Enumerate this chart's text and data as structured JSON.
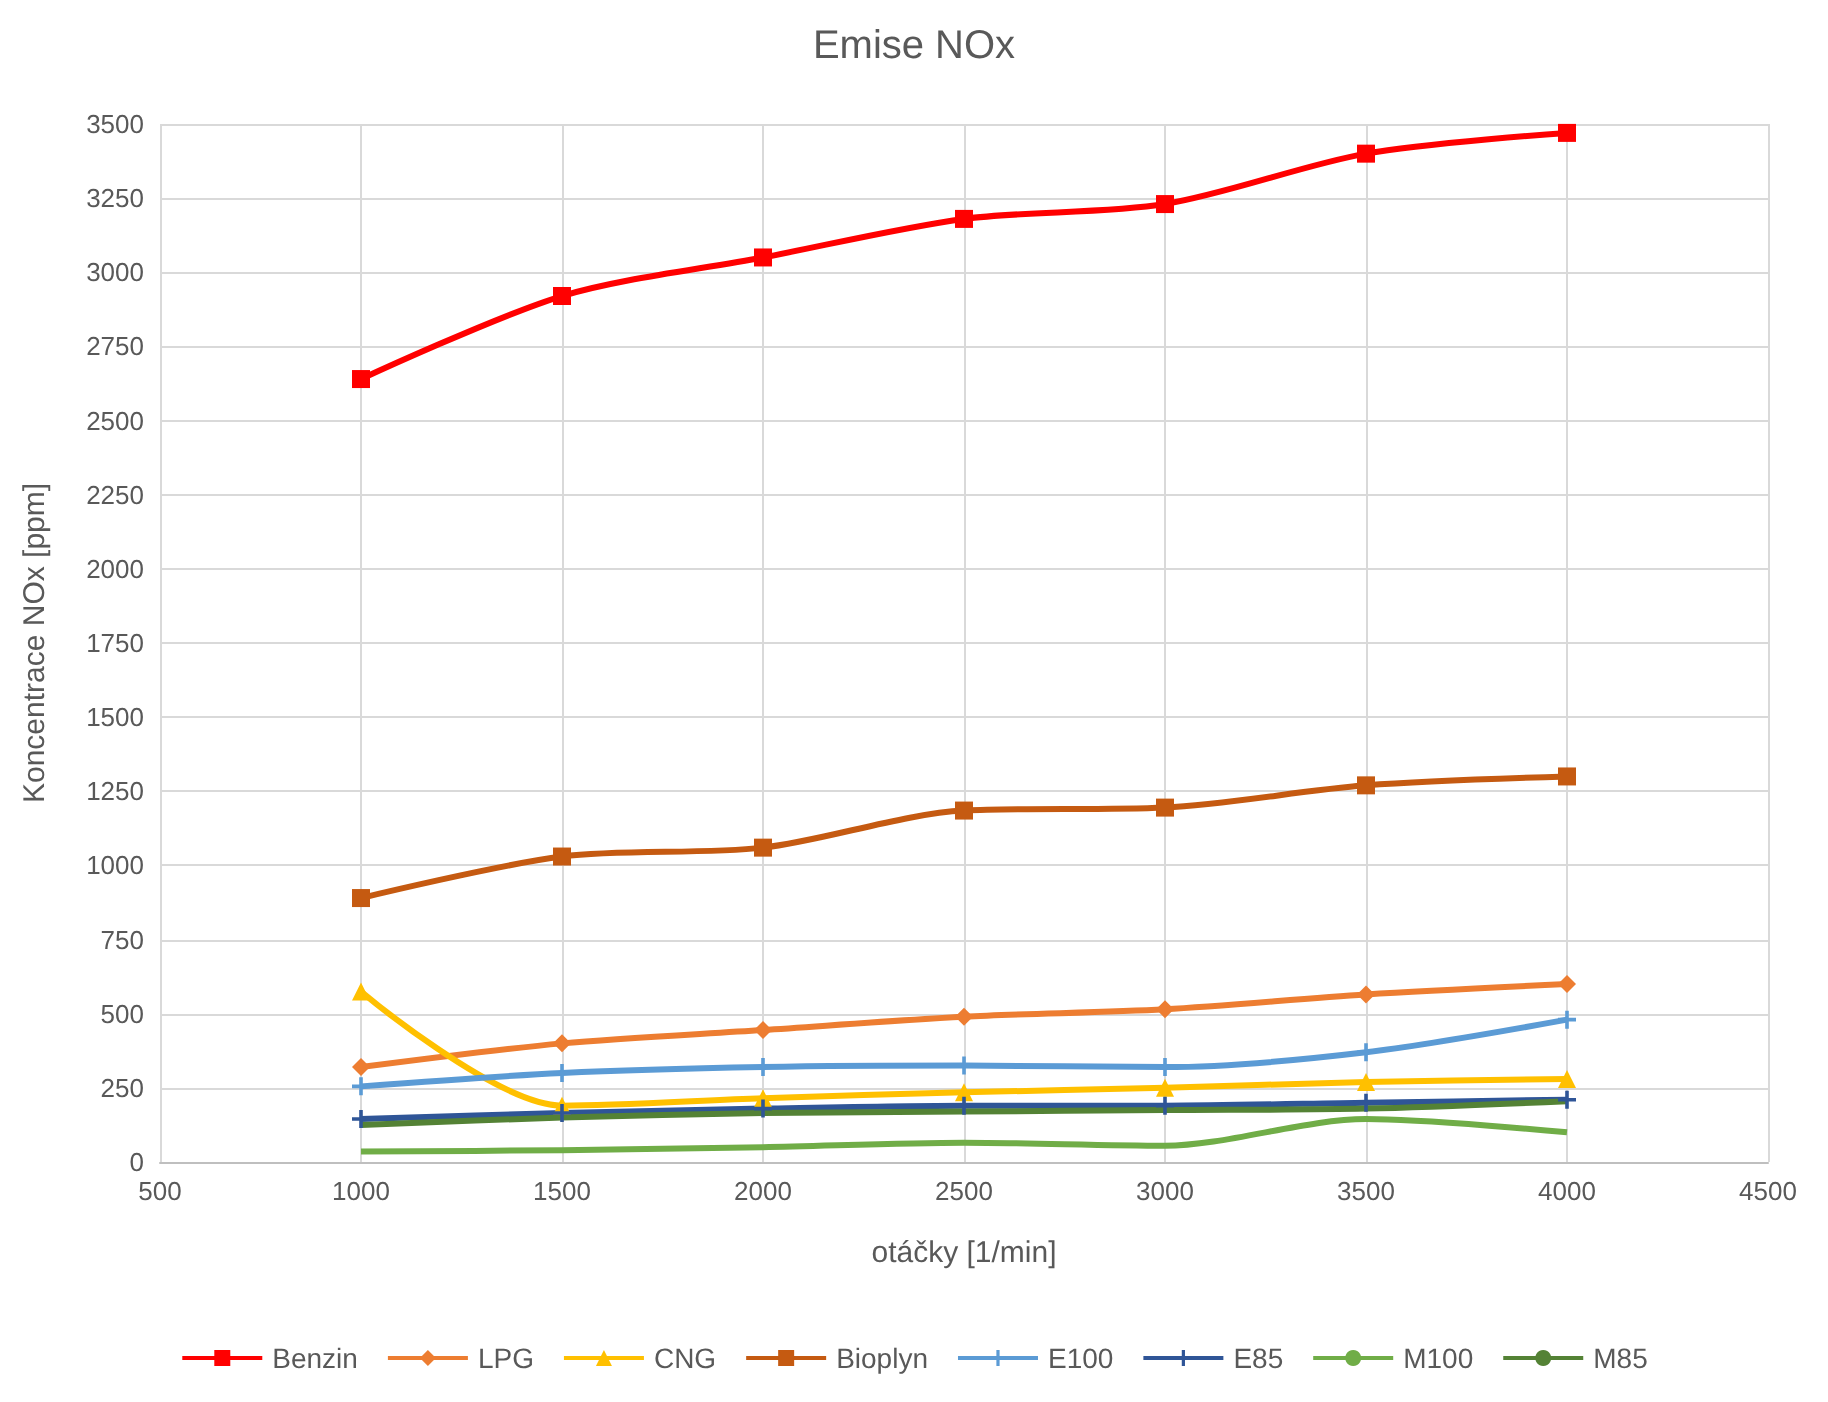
{
  "chart_data": {
    "type": "line",
    "title": "Emise NOx",
    "xlabel": "otáčky [1/min]",
    "ylabel": "Koncentrace NOx [ppm]",
    "x": [
      1000,
      1500,
      2000,
      2500,
      3000,
      3500,
      4000
    ],
    "xlim": [
      500,
      4500
    ],
    "xticks": [
      500,
      1000,
      1500,
      2000,
      2500,
      3000,
      3500,
      4000,
      4500
    ],
    "ylim": [
      0,
      3500
    ],
    "yticks": [
      0,
      250,
      500,
      750,
      1000,
      1250,
      1500,
      1750,
      2000,
      2250,
      2500,
      2750,
      3000,
      3250,
      3500
    ],
    "grid": true,
    "legend": "bottom",
    "series": [
      {
        "name": "Benzin",
        "color": "#ff0000",
        "marker": "square",
        "values": [
          2640,
          2920,
          3050,
          3180,
          3230,
          3400,
          3470
        ]
      },
      {
        "name": "LPG",
        "color": "#ed7d31",
        "marker": "diamond",
        "values": [
          320,
          400,
          445,
          490,
          515,
          565,
          600
        ]
      },
      {
        "name": "CNG",
        "color": "#ffc000",
        "marker": "triangle",
        "values": [
          575,
          190,
          215,
          235,
          250,
          270,
          280
        ]
      },
      {
        "name": "Bioplyn",
        "color": "#c55a11",
        "marker": "square",
        "values": [
          890,
          1030,
          1060,
          1185,
          1195,
          1270,
          1300
        ]
      },
      {
        "name": "E100",
        "color": "#5b9bd5",
        "marker": "cross",
        "values": [
          255,
          300,
          320,
          325,
          320,
          370,
          480
        ]
      },
      {
        "name": "E85",
        "color": "#2f5597",
        "marker": "cross",
        "values": [
          145,
          165,
          180,
          190,
          190,
          200,
          210
        ]
      },
      {
        "name": "M100",
        "color": "#70ad47",
        "marker": "none",
        "values": [
          35,
          40,
          50,
          65,
          55,
          145,
          100
        ]
      },
      {
        "name": "M85",
        "color": "#548235",
        "marker": "none",
        "values": [
          125,
          150,
          165,
          170,
          175,
          180,
          205
        ]
      }
    ]
  }
}
